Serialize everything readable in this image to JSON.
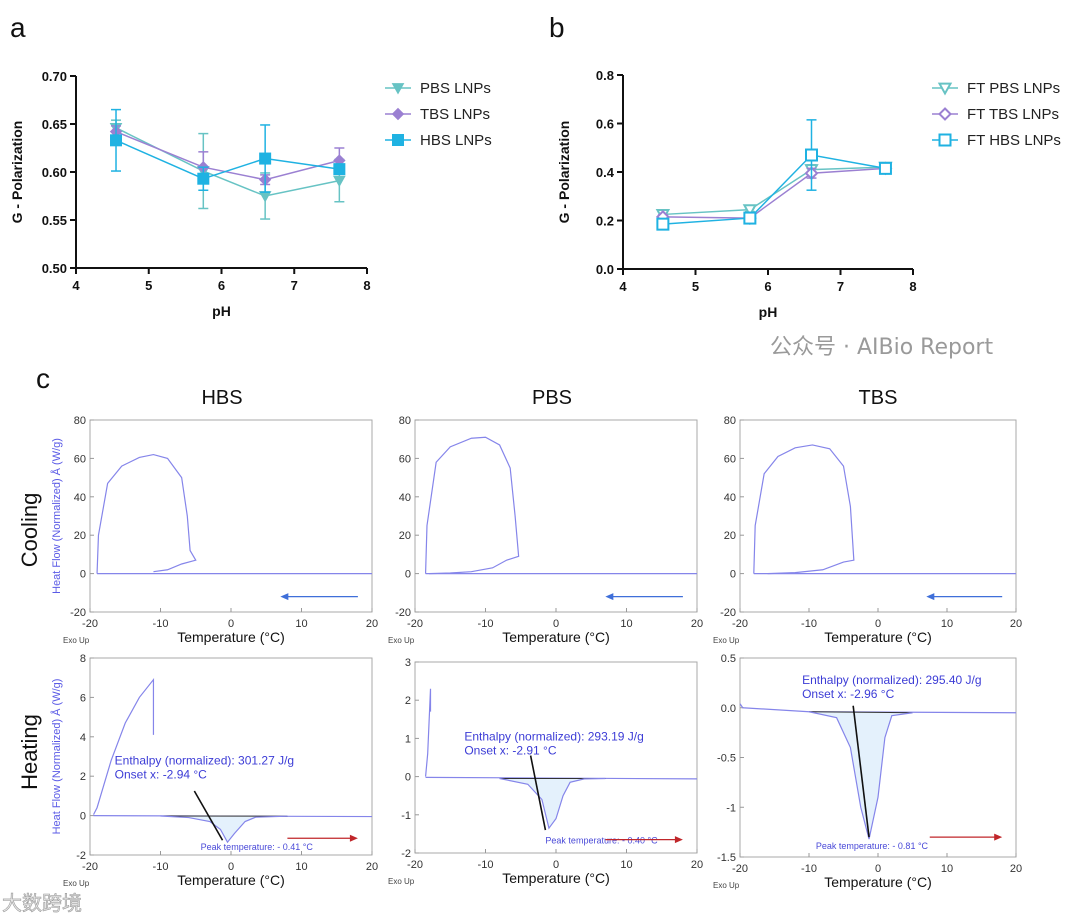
{
  "panel_labels": {
    "a": "a",
    "b": "b",
    "c": "c"
  },
  "column_titles": [
    "HBS",
    "PBS",
    "TBS"
  ],
  "row_titles": [
    "Cooling",
    "Heating"
  ],
  "watermarks": {
    "right": "公众号 · AIBio Report",
    "left": "大数跨境"
  },
  "colors": {
    "pbs": "#67c3c4",
    "tbs": "#9b80d2",
    "hbs": "#1fb2e2",
    "dsc_line": "#8585ea",
    "dsc_fill": "#e4f1fc",
    "cool_arrow": "#3f6fd9",
    "heat_arrow": "#c0262a",
    "onset_line": "#111111"
  },
  "chart_data": [
    {
      "id": "a",
      "type": "line",
      "xlabel": "pH",
      "ylabel": "G - Polarization",
      "xlim": [
        4,
        8
      ],
      "ylim": [
        0.5,
        0.7
      ],
      "xticks": [
        4,
        5,
        6,
        7,
        8
      ],
      "xtick_labels": [
        "4",
        "5",
        "6",
        "7",
        "8"
      ],
      "yticks": [
        0.5,
        0.55,
        0.6,
        0.65,
        0.7
      ],
      "ytick_labels": [
        "0.50",
        "0.55",
        "0.60",
        "0.65",
        "0.70"
      ],
      "legend": "right",
      "grid": false,
      "x": [
        4.55,
        5.75,
        6.6,
        7.62
      ],
      "series": [
        {
          "name": "PBS LNPs",
          "marker": "triangle-down",
          "filled": true,
          "color_key": "pbs",
          "values": [
            0.646,
            0.601,
            0.575,
            0.591
          ],
          "errors": [
            0.008,
            0.039,
            0.024,
            0.022
          ]
        },
        {
          "name": "TBS LNPs",
          "marker": "diamond",
          "filled": true,
          "color_key": "tbs",
          "values": [
            0.642,
            0.605,
            0.592,
            0.612
          ],
          "errors": [
            0.006,
            0.016,
            0.005,
            0.013
          ]
        },
        {
          "name": "HBS LNPs",
          "marker": "square",
          "filled": true,
          "color_key": "hbs",
          "values": [
            0.633,
            0.593,
            0.614,
            0.603
          ],
          "errors": [
            0.032,
            0.012,
            0.035,
            0.004
          ]
        }
      ]
    },
    {
      "id": "b",
      "type": "line",
      "xlabel": "pH",
      "ylabel": "G - Polarization",
      "xlim": [
        4,
        8
      ],
      "ylim": [
        0.0,
        0.8
      ],
      "xticks": [
        4,
        5,
        6,
        7,
        8
      ],
      "xtick_labels": [
        "4",
        "5",
        "6",
        "7",
        "8"
      ],
      "yticks": [
        0.0,
        0.2,
        0.4,
        0.6,
        0.8
      ],
      "ytick_labels": [
        "0.0",
        "0.2",
        "0.4",
        "0.6",
        "0.8"
      ],
      "legend": "right",
      "grid": false,
      "x": [
        4.55,
        5.75,
        6.6,
        7.62
      ],
      "series": [
        {
          "name": "FT PBS LNPs",
          "marker": "triangle-down",
          "filled": false,
          "color_key": "pbs",
          "values": [
            0.225,
            0.245,
            0.41,
            0.42
          ],
          "errors": [
            0.01,
            0.008,
            0.02,
            0.008
          ]
        },
        {
          "name": "FT TBS LNPs",
          "marker": "diamond",
          "filled": false,
          "color_key": "tbs",
          "values": [
            0.215,
            0.21,
            0.395,
            0.415
          ],
          "errors": [
            0.008,
            0.008,
            0.02,
            0.008
          ]
        },
        {
          "name": "FT HBS LNPs",
          "marker": "square",
          "filled": false,
          "color_key": "hbs",
          "values": [
            0.185,
            0.21,
            0.47,
            0.415
          ],
          "errors": [
            0.01,
            0.01,
            0.145,
            0.008
          ]
        }
      ]
    },
    {
      "id": "c-hbs-cooling",
      "type": "line",
      "buffer": "HBS",
      "mode": "Cooling",
      "xlabel": "Temperature (°C)",
      "ylabel": "Heat Flow (Normalized) Å (W/g)",
      "corner_label": "Exo Up",
      "xlim": [
        -20,
        20
      ],
      "ylim": [
        -20,
        80
      ],
      "xticks": [
        -20,
        -10,
        0,
        10,
        20
      ],
      "xtick_labels": [
        "-20",
        "-10",
        "0",
        "10",
        "20"
      ],
      "yticks": [
        -20,
        0,
        20,
        40,
        60,
        80
      ],
      "ytick_labels": [
        "-20",
        "0",
        "20",
        "40",
        "60",
        "80"
      ],
      "series": [
        {
          "name": "baseline",
          "points": [
            [
              20,
              0
            ],
            [
              -19,
              0
            ]
          ]
        },
        {
          "name": "crystallization",
          "points": [
            [
              -11,
              1
            ],
            [
              -9,
              2
            ],
            [
              -7,
              5
            ],
            [
              -5,
              7
            ],
            [
              -5.8,
              12
            ],
            [
              -6.2,
              30
            ],
            [
              -7,
              50
            ],
            [
              -9,
              60
            ],
            [
              -11,
              62
            ],
            [
              -13,
              60.5
            ],
            [
              -15.5,
              56
            ],
            [
              -17.5,
              47
            ],
            [
              -18.8,
              20
            ],
            [
              -19,
              0
            ]
          ]
        }
      ],
      "arrow": {
        "direction": "left",
        "from": 18,
        "to": 7,
        "y": -12
      }
    },
    {
      "id": "c-pbs-cooling",
      "type": "line",
      "buffer": "PBS",
      "mode": "Cooling",
      "xlabel": "Temperature (°C)",
      "ylabel": "",
      "corner_label": "Exo Up",
      "xlim": [
        -20,
        20
      ],
      "ylim": [
        -20,
        80
      ],
      "xticks": [
        -20,
        -10,
        0,
        10,
        20
      ],
      "xtick_labels": [
        "-20",
        "-10",
        "0",
        "10",
        "20"
      ],
      "yticks": [
        -20,
        0,
        20,
        40,
        60,
        80
      ],
      "ytick_labels": [
        "-20",
        "0",
        "20",
        "40",
        "60",
        "80"
      ],
      "series": [
        {
          "name": "baseline",
          "points": [
            [
              20,
              0
            ],
            [
              -18.5,
              0
            ]
          ]
        },
        {
          "name": "crystallization",
          "points": [
            [
              -18,
              0
            ],
            [
              -15,
              0.3
            ],
            [
              -12,
              1
            ],
            [
              -9,
              3
            ],
            [
              -7,
              7
            ],
            [
              -5.3,
              9
            ],
            [
              -5.8,
              30
            ],
            [
              -6.5,
              55
            ],
            [
              -8,
              67
            ],
            [
              -10,
              71
            ],
            [
              -12,
              70.5
            ],
            [
              -15,
              66
            ],
            [
              -17,
              58
            ],
            [
              -18.3,
              25
            ],
            [
              -18.5,
              0
            ]
          ]
        }
      ],
      "arrow": {
        "direction": "left",
        "from": 18,
        "to": 7,
        "y": -12
      }
    },
    {
      "id": "c-tbs-cooling",
      "type": "line",
      "buffer": "TBS",
      "mode": "Cooling",
      "xlabel": "Temperature (°C)",
      "ylabel": "",
      "corner_label": "Exo Up",
      "xlim": [
        -20,
        20
      ],
      "ylim": [
        -20,
        80
      ],
      "xticks": [
        -20,
        -10,
        0,
        10,
        20
      ],
      "xtick_labels": [
        "-20",
        "-10",
        "0",
        "10",
        "20"
      ],
      "yticks": [
        -20,
        0,
        20,
        40,
        60,
        80
      ],
      "ytick_labels": [
        "-20",
        "0",
        "20",
        "40",
        "60",
        "80"
      ],
      "series": [
        {
          "name": "baseline",
          "points": [
            [
              20,
              0
            ],
            [
              -18,
              0
            ]
          ]
        },
        {
          "name": "crystallization",
          "points": [
            [
              -16,
              0
            ],
            [
              -12,
              0.5
            ],
            [
              -8,
              2
            ],
            [
              -5,
              6
            ],
            [
              -3.5,
              7
            ],
            [
              -4,
              35
            ],
            [
              -5,
              56
            ],
            [
              -7,
              65
            ],
            [
              -9.5,
              67
            ],
            [
              -12,
              65.5
            ],
            [
              -14.5,
              61
            ],
            [
              -16.5,
              52
            ],
            [
              -17.8,
              25
            ],
            [
              -18,
              0
            ]
          ]
        }
      ],
      "arrow": {
        "direction": "left",
        "from": 18,
        "to": 7,
        "y": -12
      }
    },
    {
      "id": "c-hbs-heating",
      "type": "line",
      "buffer": "HBS",
      "mode": "Heating",
      "xlabel": "Temperature (°C)",
      "ylabel": "Heat Flow (Normalized) Å (W/g)",
      "corner_label": "Exo Up",
      "xlim": [
        -20,
        20
      ],
      "ylim": [
        -2,
        8
      ],
      "xticks": [
        -20,
        -10,
        0,
        10,
        20
      ],
      "xtick_labels": [
        "-20",
        "-10",
        "0",
        "10",
        "20"
      ],
      "yticks": [
        -2,
        0,
        2,
        4,
        6,
        8
      ],
      "ytick_labels": [
        "-2",
        "0",
        "2",
        "4",
        "6",
        "8"
      ],
      "series": [
        {
          "name": "spike",
          "points": [
            [
              -19.5,
              0.05
            ],
            [
              -19,
              0.4
            ],
            [
              -17,
              2.8
            ],
            [
              -15,
              4.7
            ],
            [
              -13,
              6
            ],
            [
              -11,
              6.9
            ],
            [
              -11,
              4.1
            ]
          ]
        },
        {
          "name": "baseline",
          "points": [
            [
              -19.5,
              0
            ],
            [
              20,
              -0.05
            ]
          ]
        },
        {
          "name": "melting",
          "fill": true,
          "points": [
            [
              -10,
              -0.02
            ],
            [
              -6,
              -0.1
            ],
            [
              -3,
              -0.3
            ],
            [
              -1.5,
              -0.7
            ],
            [
              -0.5,
              -1.35
            ],
            [
              0.5,
              -0.9
            ],
            [
              2,
              -0.3
            ],
            [
              3.5,
              -0.08
            ],
            [
              8,
              -0.03
            ]
          ]
        }
      ],
      "annotation": {
        "lines": [
          "Enthalpy (normalized): 301.27 J/g",
          "Onset x: -2.94 °C"
        ],
        "at": [
          -16.5,
          2.6
        ]
      },
      "onset_line": [
        [
          -5.2,
          1.25
        ],
        [
          -1.2,
          -1.25
        ]
      ],
      "peak_label": {
        "text": "Peak temperature: - 0.41 °C",
        "at": [
          -4.3,
          -1.75
        ]
      },
      "arrow": {
        "direction": "right",
        "from": 8,
        "to": 18,
        "y": -1.15
      }
    },
    {
      "id": "c-pbs-heating",
      "type": "line",
      "buffer": "PBS",
      "mode": "Heating",
      "xlabel": "Temperature (°C)",
      "ylabel": "",
      "corner_label": "Exo Up",
      "xlim": [
        -20,
        20
      ],
      "ylim": [
        -2,
        3
      ],
      "xticks": [
        -20,
        -10,
        0,
        10,
        20
      ],
      "xtick_labels": [
        "-20",
        "-10",
        "0",
        "10",
        "20"
      ],
      "yticks": [
        -2,
        -1,
        0,
        1,
        2,
        3
      ],
      "ytick_labels": [
        "-2",
        "-1",
        "0",
        "1",
        "2",
        "3"
      ],
      "series": [
        {
          "name": "spike",
          "points": [
            [
              -18.5,
              0.0
            ],
            [
              -18.2,
              0.6
            ],
            [
              -17.8,
              2.3
            ],
            [
              -17.8,
              1.7
            ]
          ]
        },
        {
          "name": "baseline",
          "points": [
            [
              -18.5,
              -0.02
            ],
            [
              20,
              -0.06
            ]
          ]
        },
        {
          "name": "melting",
          "fill": true,
          "points": [
            [
              -8,
              -0.05
            ],
            [
              -4,
              -0.2
            ],
            [
              -2,
              -0.6
            ],
            [
              -1,
              -1.35
            ],
            [
              0,
              -1.1
            ],
            [
              1,
              -0.5
            ],
            [
              2,
              -0.15
            ],
            [
              4,
              -0.06
            ],
            [
              7,
              -0.05
            ]
          ]
        }
      ],
      "annotation": {
        "lines": [
          "Enthalpy (normalized): 293.19 J/g",
          "Onset x: -2.91 °C"
        ],
        "at": [
          -13,
          0.95
        ]
      },
      "onset_line": [
        [
          -3.6,
          0.55
        ],
        [
          -1.5,
          -1.4
        ]
      ],
      "peak_label": {
        "text": "Peak temperature: - 0.40 °C",
        "at": [
          -1.5,
          -1.75
        ]
      },
      "arrow": {
        "direction": "right",
        "from": 7,
        "to": 18,
        "y": -1.65
      }
    },
    {
      "id": "c-tbs-heating",
      "type": "line",
      "buffer": "TBS",
      "mode": "Heating",
      "xlabel": "Temperature (°C)",
      "ylabel": "",
      "corner_label": "Exo Up",
      "xlim": [
        -20,
        20
      ],
      "ylim": [
        -1.5,
        0.5
      ],
      "xticks": [
        -20,
        -10,
        0,
        10,
        20
      ],
      "xtick_labels": [
        "-20",
        "-10",
        "0",
        "10",
        "20"
      ],
      "yticks": [
        -1.5,
        -1,
        -0.5,
        0,
        0.5
      ],
      "ytick_labels": [
        "-1.5",
        "-1",
        "-0.5",
        "0.0",
        "0.5"
      ],
      "series": [
        {
          "name": "baseline",
          "points": [
            [
              -20,
              0.04
            ],
            [
              -19.6,
              0.0
            ],
            [
              -10,
              -0.04
            ],
            [
              20,
              -0.05
            ]
          ]
        },
        {
          "name": "melting",
          "fill": true,
          "points": [
            [
              -10,
              -0.04
            ],
            [
              -6,
              -0.1
            ],
            [
              -4,
              -0.4
            ],
            [
              -2.5,
              -1.0
            ],
            [
              -1.3,
              -1.32
            ],
            [
              0,
              -0.9
            ],
            [
              1,
              -0.3
            ],
            [
              2,
              -0.08
            ],
            [
              5,
              -0.05
            ]
          ]
        }
      ],
      "annotation": {
        "lines": [
          "Enthalpy (normalized): 295.40 J/g",
          "Onset x: -2.96 °C"
        ],
        "at": [
          -11,
          0.24
        ]
      },
      "onset_line": [
        [
          -3.6,
          0.02
        ],
        [
          -1.3,
          -1.3
        ]
      ],
      "peak_label": {
        "text": "Peak temperature: - 0.81 °C",
        "at": [
          -9,
          -1.42
        ]
      },
      "arrow": {
        "direction": "right",
        "from": 7.5,
        "to": 18,
        "y": -1.3
      }
    }
  ]
}
